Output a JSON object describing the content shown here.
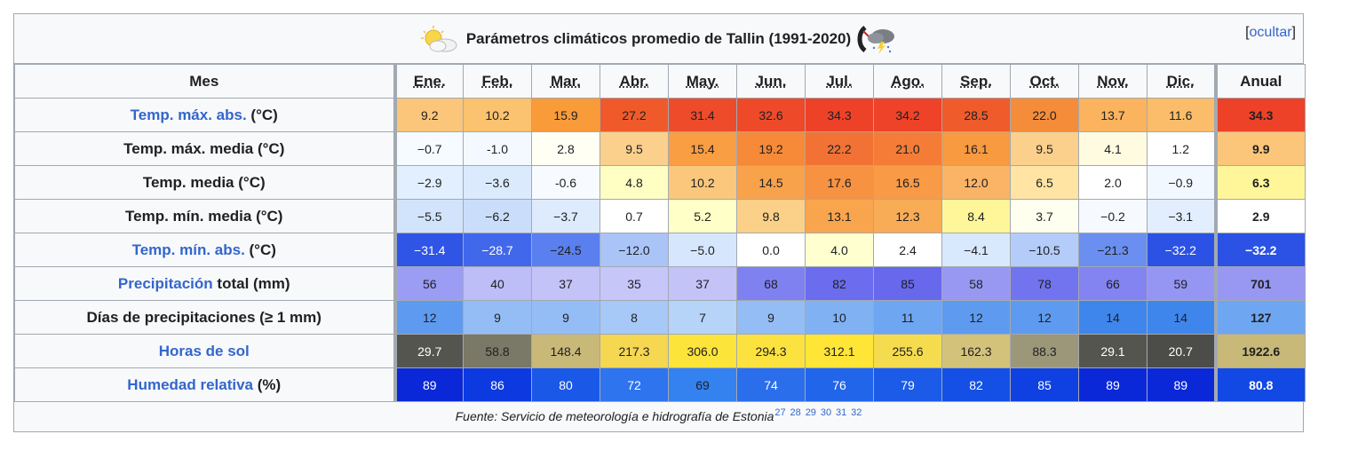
{
  "caption": {
    "title": "Parámetros climáticos promedio de Tallin (1991-2020)",
    "toggle_open": "[",
    "toggle_label": "ocultar",
    "toggle_close": "]",
    "left_icon": "partly-cloudy-sun-icon",
    "right_icon": "storm-cloud-icon"
  },
  "header": {
    "corner": "Mes",
    "months": [
      "Ene.",
      "Feb.",
      "Mar.",
      "Abr.",
      "May.",
      "Jun.",
      "Jul.",
      "Ago.",
      "Sep.",
      "Oct.",
      "Nov.",
      "Dic."
    ],
    "annual": "Anual"
  },
  "rows": [
    {
      "label_link": "Temp. máx. abs.",
      "label_rest": " (°C)",
      "values": [
        "9.2",
        "10.2",
        "15.9",
        "27.2",
        "31.4",
        "32.6",
        "34.3",
        "34.2",
        "28.5",
        "22.0",
        "13.7",
        "11.6"
      ],
      "annual": "34.3",
      "colors": [
        "#fbc67a",
        "#fbc26f",
        "#f99b39",
        "#f05a2a",
        "#ee4b2b",
        "#ee4a2a",
        "#ee4228",
        "#ee4328",
        "#ef5b2a",
        "#f58c3a",
        "#fbb35e",
        "#fbbd69"
      ],
      "annual_color": "#ee4228"
    },
    {
      "label_link": "",
      "label_rest": "Temp. máx. media (°C)",
      "values": [
        "−0.7",
        "-1.0",
        "2.8",
        "9.5",
        "15.4",
        "19.2",
        "22.2",
        "21.0",
        "16.1",
        "9.5",
        "4.1",
        "1.2"
      ],
      "annual": "9.9",
      "colors": [
        "#f6fbff",
        "#f4f9ff",
        "#fffff4",
        "#fbd08c",
        "#f99e42",
        "#f68a38",
        "#f27236",
        "#f47c37",
        "#f89a40",
        "#fbd08c",
        "#fffbe0",
        "#ffffff"
      ],
      "annual_color": "#fbc67a"
    },
    {
      "label_link": "",
      "label_rest": "Temp. media (°C)",
      "values": [
        "−2.9",
        "−3.6",
        "-0.6",
        "4.8",
        "10.2",
        "14.5",
        "17.6",
        "16.5",
        "12.0",
        "6.5",
        "2.0",
        "−0.9"
      ],
      "annual": "6.3",
      "colors": [
        "#e2effe",
        "#dceafd",
        "#f7fbff",
        "#ffffc4",
        "#fbc77c",
        "#f9a24c",
        "#f79242",
        "#f89a46",
        "#fbb466",
        "#ffe4a4",
        "#ffffff",
        "#f2f8ff"
      ],
      "annual_color": "#fff69a"
    },
    {
      "label_link": "",
      "label_rest": "Temp. mín. media (°C)",
      "values": [
        "−5.5",
        "−6.2",
        "−3.7",
        "0.7",
        "5.2",
        "9.8",
        "13.1",
        "12.3",
        "8.4",
        "3.7",
        "−0.2",
        "−3.1"
      ],
      "annual": "2.9",
      "colors": [
        "#d2e4fc",
        "#cadefb",
        "#ddebfd",
        "#ffffff",
        "#ffffc8",
        "#fbd088",
        "#f9a54e",
        "#f9ac56",
        "#fff69a",
        "#fffff0",
        "#f6faff",
        "#e2eefe"
      ],
      "annual_color": "#ffffff"
    },
    {
      "label_link": "Temp. mín. abs.",
      "label_rest": " (°C)",
      "values": [
        "−31.4",
        "−28.7",
        "−24.5",
        "−12.0",
        "−5.0",
        "0.0",
        "4.0",
        "2.4",
        "−4.1",
        "−10.5",
        "−21.3",
        "−32.2"
      ],
      "annual": "−32.2",
      "colors": [
        "#2e55e6",
        "#4168ea",
        "#5a80ef",
        "#aac4f8",
        "#d6e6fd",
        "#ffffff",
        "#ffffd0",
        "#ffffff",
        "#d8e8fd",
        "#b3ccf9",
        "#6a8ff0",
        "#2b52e5"
      ],
      "annual_color": "#2b52e5"
    },
    {
      "label_link": "Precipitación",
      "label_rest": " total (mm)",
      "values": [
        "56",
        "40",
        "37",
        "35",
        "37",
        "68",
        "82",
        "85",
        "58",
        "78",
        "66",
        "59"
      ],
      "annual": "701",
      "colors": [
        "#9b9cf4",
        "#bdbdf8",
        "#c3c3f8",
        "#c6c6f9",
        "#c3c3f8",
        "#8081f1",
        "#6c6cee",
        "#6868ed",
        "#9898f3",
        "#7273ef",
        "#8384f1",
        "#9595f3"
      ],
      "annual_color": "#9898f3"
    },
    {
      "label_link": "",
      "label_rest": "Días de precipitaciones (≥ 1 mm)",
      "values": [
        "12",
        "9",
        "9",
        "8",
        "7",
        "9",
        "10",
        "11",
        "12",
        "12",
        "14",
        "14"
      ],
      "annual": "127",
      "colors": [
        "#5e9bf0",
        "#94bdf5",
        "#94bdf5",
        "#a6c9f7",
        "#b6d3f8",
        "#94bdf5",
        "#80b1f3",
        "#6ea6f2",
        "#5e9bf0",
        "#5e9bf0",
        "#3e86ec",
        "#3e86ec"
      ],
      "annual_color": "#6ea6f2"
    },
    {
      "label_link": "Horas de sol",
      "label_rest": "",
      "values": [
        "29.7",
        "58.8",
        "148.4",
        "217.3",
        "306.0",
        "294.3",
        "312.1",
        "255.6",
        "162.3",
        "88.3",
        "29.1",
        "20.7"
      ],
      "annual": "1922.6",
      "colors": [
        "#55554f",
        "#7a7867",
        "#c8b978",
        "#f5d751",
        "#fde43a",
        "#fce23f",
        "#ffe536",
        "#f4dc4e",
        "#d3c27a",
        "#9d977a",
        "#55554f",
        "#4c4c48"
      ],
      "annual_color": "#c8b978"
    },
    {
      "label_link": "Humedad relativa",
      "label_rest": " (%)",
      "values": [
        "89",
        "86",
        "80",
        "72",
        "69",
        "74",
        "76",
        "79",
        "82",
        "85",
        "89",
        "89"
      ],
      "annual": "80.8",
      "colors": [
        "#0a28d8",
        "#0c3ae0",
        "#1a58e8",
        "#2d74ee",
        "#3482f0",
        "#2a6eec",
        "#2165ea",
        "#1b5be8",
        "#1450e6",
        "#0e40e2",
        "#0a28d8",
        "#0a28d8"
      ],
      "annual_color": "#1248e4"
    }
  ],
  "source": {
    "text": "Fuente: Servicio de meteorología e hidrografía de Estonia",
    "refs": [
      "27",
      "28",
      "29",
      "30",
      "31",
      "32"
    ]
  }
}
